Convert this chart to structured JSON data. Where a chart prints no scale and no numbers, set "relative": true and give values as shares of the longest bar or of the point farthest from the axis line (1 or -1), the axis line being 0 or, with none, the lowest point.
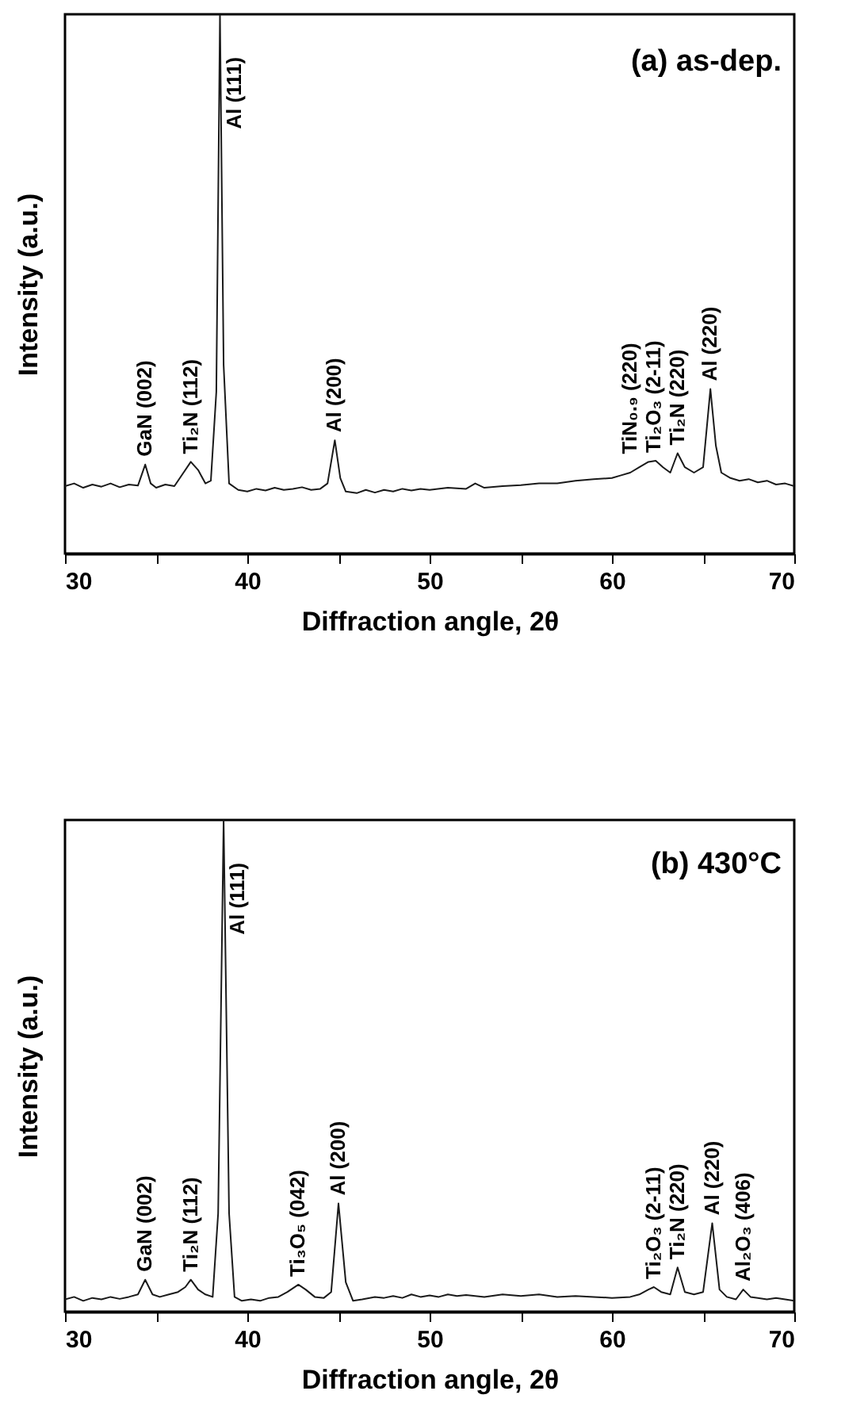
{
  "chart_data": [
    {
      "type": "line",
      "title": "(a) as-dep.",
      "xlabel": "Diffraction angle, 2θ",
      "ylabel": "Intensity (a.u.)",
      "relative": true,
      "xlim": [
        30,
        70
      ],
      "xticks": [
        30,
        {
          "value": 35,
          "label": null
        },
        40,
        {
          "value": 45,
          "label": null
        },
        50,
        {
          "value": 55,
          "label": null
        },
        60,
        {
          "value": 65,
          "label": null
        },
        70
      ],
      "x": [
        30,
        30.5,
        31,
        31.5,
        32,
        32.5,
        33,
        33.5,
        34,
        34.4,
        34.7,
        35,
        35.5,
        36,
        36.5,
        36.9,
        37.3,
        37.7,
        38.0,
        38.3,
        38.5,
        38.7,
        39.0,
        39.5,
        40,
        40.5,
        41,
        41.5,
        42,
        42.5,
        43,
        43.5,
        44,
        44.4,
        44.8,
        45.1,
        45.4,
        46,
        46.5,
        47,
        47.5,
        48,
        48.5,
        49,
        49.5,
        50,
        51,
        52,
        52.5,
        53,
        54,
        55,
        56,
        57,
        58,
        59,
        60,
        60.5,
        61,
        61.5,
        62,
        62.4,
        62.8,
        63.2,
        63.6,
        64,
        64.5,
        65,
        65.4,
        65.7,
        66,
        66.5,
        67,
        67.5,
        68,
        68.5,
        69,
        69.5,
        70
      ],
      "series": [
        {
          "color": "#1a1a1a",
          "values": [
            0.125,
            0.13,
            0.122,
            0.128,
            0.124,
            0.13,
            0.123,
            0.128,
            0.126,
            0.165,
            0.13,
            0.122,
            0.128,
            0.125,
            0.15,
            0.17,
            0.155,
            0.13,
            0.135,
            0.3,
            1.0,
            0.35,
            0.13,
            0.118,
            0.115,
            0.12,
            0.117,
            0.122,
            0.118,
            0.12,
            0.123,
            0.118,
            0.12,
            0.13,
            0.21,
            0.14,
            0.115,
            0.112,
            0.118,
            0.113,
            0.118,
            0.115,
            0.12,
            0.117,
            0.12,
            0.118,
            0.122,
            0.12,
            0.13,
            0.122,
            0.125,
            0.127,
            0.13,
            0.13,
            0.135,
            0.138,
            0.14,
            0.145,
            0.15,
            0.16,
            0.17,
            0.172,
            0.16,
            0.15,
            0.186,
            0.16,
            0.15,
            0.16,
            0.305,
            0.2,
            0.15,
            0.14,
            0.135,
            0.138,
            0.132,
            0.135,
            0.128,
            0.13,
            0.125
          ]
        }
      ],
      "annotations": [
        {
          "text": "GaN (002)",
          "x": 34.4,
          "y": 0.165
        },
        {
          "text": "Ti₂N (112)",
          "x": 36.9,
          "y": 0.17
        },
        {
          "text": "Al (111)",
          "x": 38.5,
          "y": 1.0
        },
        {
          "text": "Al (200)",
          "x": 44.8,
          "y": 0.21
        },
        {
          "text": "TiN₀.₉ (220)",
          "x": 62,
          "y": 0.17
        },
        {
          "text": "Ti₂O₃ (2-11)",
          "x": 62.4,
          "y": 0.172
        },
        {
          "text": "Ti₂N (220)",
          "x": 63.6,
          "y": 0.186
        },
        {
          "text": "Al (220)",
          "x": 65.4,
          "y": 0.305
        }
      ]
    },
    {
      "type": "line",
      "title": "(b) 430°C",
      "xlabel": "Diffraction angle, 2θ",
      "ylabel": "Intensity (a.u.)",
      "relative": true,
      "xlim": [
        30,
        70
      ],
      "xticks": [
        30,
        {
          "value": 35,
          "label": null
        },
        40,
        {
          "value": 45,
          "label": null
        },
        50,
        {
          "value": 55,
          "label": null
        },
        60,
        {
          "value": 65,
          "label": null
        },
        70
      ],
      "x": [
        30,
        30.5,
        31,
        31.5,
        32,
        32.5,
        33,
        33.5,
        34,
        34.4,
        34.8,
        35.2,
        35.7,
        36.2,
        36.6,
        36.9,
        37.3,
        37.7,
        38.1,
        38.4,
        38.7,
        39.0,
        39.3,
        39.7,
        40.2,
        40.7,
        41.2,
        41.7,
        42.2,
        42.8,
        43.2,
        43.7,
        44.2,
        44.6,
        45.0,
        45.4,
        45.8,
        46.3,
        47,
        47.5,
        48,
        48.5,
        49,
        49.5,
        50,
        50.5,
        51,
        51.5,
        52,
        53,
        54,
        55,
        56,
        57,
        58,
        59,
        60,
        61,
        61.5,
        62,
        62.3,
        62.7,
        63.2,
        63.6,
        64,
        64.5,
        65,
        65.5,
        65.9,
        66.3,
        66.8,
        67.2,
        67.6,
        68,
        68.5,
        69,
        69.5,
        70
      ],
      "series": [
        {
          "color": "#1a1a1a",
          "values": [
            0.025,
            0.03,
            0.022,
            0.028,
            0.025,
            0.03,
            0.026,
            0.03,
            0.035,
            0.065,
            0.035,
            0.03,
            0.035,
            0.04,
            0.05,
            0.065,
            0.045,
            0.035,
            0.03,
            0.2,
            1.0,
            0.2,
            0.03,
            0.022,
            0.025,
            0.022,
            0.028,
            0.03,
            0.04,
            0.055,
            0.045,
            0.03,
            0.028,
            0.04,
            0.22,
            0.06,
            0.022,
            0.025,
            0.03,
            0.028,
            0.032,
            0.028,
            0.035,
            0.03,
            0.033,
            0.03,
            0.035,
            0.032,
            0.034,
            0.03,
            0.035,
            0.032,
            0.035,
            0.03,
            0.032,
            0.03,
            0.028,
            0.03,
            0.035,
            0.045,
            0.05,
            0.04,
            0.035,
            0.09,
            0.04,
            0.035,
            0.04,
            0.18,
            0.045,
            0.03,
            0.025,
            0.045,
            0.03,
            0.028,
            0.025,
            0.028,
            0.025,
            0.022
          ]
        }
      ],
      "annotations": [
        {
          "text": "GaN (002)",
          "x": 34.4,
          "y": 0.065
        },
        {
          "text": "Ti₂N (112)",
          "x": 36.9,
          "y": 0.065
        },
        {
          "text": "Al (111)",
          "x": 38.7,
          "y": 1.0
        },
        {
          "text": "Ti₃O₅ (042)",
          "x": 42.8,
          "y": 0.055
        },
        {
          "text": "Al (200)",
          "x": 45.0,
          "y": 0.22
        },
        {
          "text": "Ti₂O₃ (2-11)",
          "x": 62.3,
          "y": 0.05
        },
        {
          "text": "Ti₂N (220)",
          "x": 63.6,
          "y": 0.09
        },
        {
          "text": "Al (220)",
          "x": 65.5,
          "y": 0.18
        },
        {
          "text": "Al₂O₃ (406)",
          "x": 67.2,
          "y": 0.045
        }
      ]
    }
  ]
}
